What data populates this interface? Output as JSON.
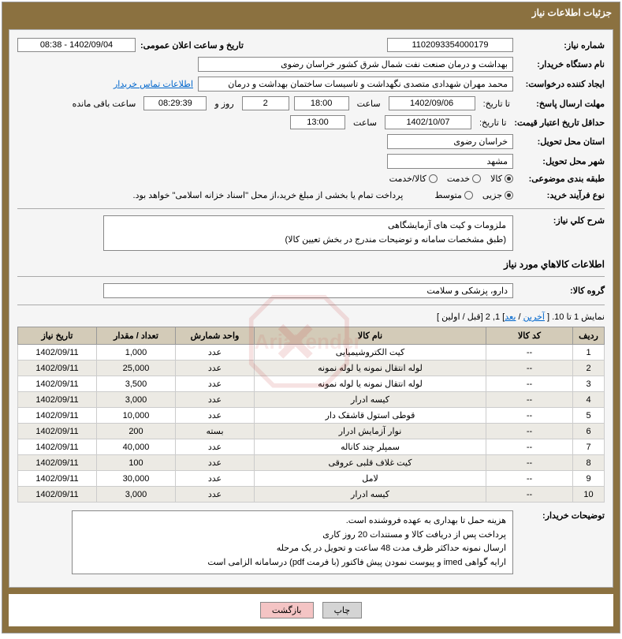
{
  "header": {
    "title": "جزئیات اطلاعات نیاز"
  },
  "fields": {
    "need_number_label": "شماره نياز:",
    "need_number": "1102093354000179",
    "announce_datetime_label": "تاریخ و ساعت اعلان عمومی:",
    "announce_datetime": "1402/09/04 - 08:38",
    "buyer_org_label": "نام دستگاه خریدار:",
    "buyer_org": "بهداشت و درمان صنعت نفت شمال شرق کشور   خراسان رضوی",
    "creator_label": "ایجاد کننده درخواست:",
    "creator": "محمد مهران شهدادی متصدی نگهداشت و تاسیسات ساختمان بهداشت و درمان",
    "contact_link": "اطلاعات تماس خریدار",
    "deadline_label": "مهلت ارسال پاسخ:",
    "deadline_date": "1402/09/06",
    "time_label": "ساعت",
    "deadline_time": "18:00",
    "days_remaining": "2",
    "days_word": "روز و",
    "time_remaining": "08:29:39",
    "remaining_word": "ساعت باقی مانده",
    "until_label": "تا تاریخ:",
    "validity_label": "حداقل تاریخ اعتبار قیمت:",
    "validity_date": "1402/10/07",
    "validity_time": "13:00",
    "delivery_province_label": "استان محل تحویل:",
    "delivery_province": "خراسان رضوی",
    "delivery_city_label": "شهر محل تحویل:",
    "delivery_city": "مشهد",
    "category_label": "طبقه بندی موضوعی:",
    "cat_goods": "کالا",
    "cat_service": "خدمت",
    "cat_both": "کالا/خدمت",
    "process_label": "نوع فرآیند خرید:",
    "proc_partial": "جزیی",
    "proc_medium": "متوسط",
    "process_note": "پرداخت تمام یا بخشی از مبلغ خرید،از محل \"اسناد خزانه اسلامی\" خواهد بود.",
    "general_label": "شرح كلي نياز:",
    "general_line1": "ملزومات و کیت های آزمایشگاهی",
    "general_line2": "(طبق مشخصات سامانه و توضیحات  مندرج در بخش تعيين كالا)",
    "items_section_title": "اطلاعات کالاهاي مورد نیاز",
    "group_label": "گروه کالا:",
    "group_value": "دارو، پزشکی و سلامت",
    "pager_text": "نمایش 1 تا 10.",
    "pager_last": "آخرین",
    "pager_next": "بعد",
    "pager_sep": " / ",
    "pager_nums": "] 1, 2 [",
    "pager_prev": "قبل",
    "pager_first": "اولین",
    "buyer_notes_label": "توضیحات خریدار:",
    "buyer_notes_l1": "هزینه حمل تا بهداری به عهده فروشنده است.",
    "buyer_notes_l2": "پرداخت پس از دریافت کالا و مستندات 20 روز کاری",
    "buyer_notes_l3": "ارسال نمونه حداکثر ظرف مدت 48 ساعت و تحویل در یک مرحله",
    "buyer_notes_l4": "ارایه گواهی  imed  و پیوست نمودن پیش فاکتور (با فرمت pdf) درسامانه الزامی است"
  },
  "table": {
    "headers": [
      "ردیف",
      "کد کالا",
      "نام کالا",
      "واحد شمارش",
      "تعداد / مقدار",
      "تاریخ نیاز"
    ],
    "col_widths": [
      "40px",
      "110px",
      "auto",
      "100px",
      "100px",
      "100px"
    ],
    "rows": [
      [
        "1",
        "--",
        "کیت الکتروشیمیایی",
        "عدد",
        "1,000",
        "1402/09/11"
      ],
      [
        "2",
        "--",
        "لوله انتقال نمونه یا لوله نمونه",
        "عدد",
        "25,000",
        "1402/09/11"
      ],
      [
        "3",
        "--",
        "لوله انتقال نمونه یا لوله نمونه",
        "عدد",
        "3,500",
        "1402/09/11"
      ],
      [
        "4",
        "--",
        "کیسه ادرار",
        "عدد",
        "3,000",
        "1402/09/11"
      ],
      [
        "5",
        "--",
        "قوطی استول قاشقک دار",
        "عدد",
        "10,000",
        "1402/09/11"
      ],
      [
        "6",
        "--",
        "نوار آزمایش ادرار",
        "بسته",
        "200",
        "1402/09/11"
      ],
      [
        "7",
        "--",
        "سمپلر چند کاناله",
        "عدد",
        "40,000",
        "1402/09/11"
      ],
      [
        "8",
        "--",
        "کیت غلاف قلبی عروقی",
        "عدد",
        "100",
        "1402/09/11"
      ],
      [
        "9",
        "--",
        "لامل",
        "عدد",
        "30,000",
        "1402/09/11"
      ],
      [
        "10",
        "--",
        "کیسه ادرار",
        "عدد",
        "3,000",
        "1402/09/11"
      ]
    ]
  },
  "buttons": {
    "print": "چاپ",
    "back": "بازگشت"
  },
  "colors": {
    "header_bg": "#8b7140",
    "panel_bg": "#f5f5f5",
    "th_bg": "#d3cbb8",
    "row_alt": "#eceae4",
    "link": "#0066cc",
    "watermark": "#c94141"
  }
}
